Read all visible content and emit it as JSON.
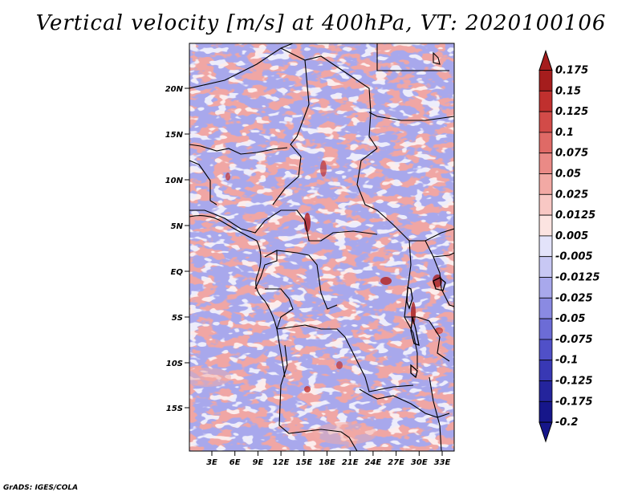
{
  "title": "Vertical velocity [m/s] at 400hPa, VT: 2020100106",
  "credit": "GrADS: IGES/COLA",
  "map": {
    "lat_ticks": [
      "20N",
      "15N",
      "10N",
      "5N",
      "EQ",
      "5S",
      "10S",
      "15S"
    ],
    "lon_ticks": [
      "3E",
      "6E",
      "9E",
      "12E",
      "15E",
      "18E",
      "21E",
      "24E",
      "27E",
      "30E",
      "33E"
    ]
  },
  "colorbar": {
    "labels": [
      "0.175",
      "0.15",
      "0.125",
      "0.1",
      "0.075",
      "0.05",
      "0.025",
      "0.0125",
      "0.005",
      "-0.005",
      "-0.0125",
      "-0.025",
      "-0.05",
      "-0.075",
      "-0.1",
      "-0.125",
      "-0.175",
      "-0.2"
    ],
    "colors": [
      "#a51d1d",
      "#c0302e",
      "#d24b48",
      "#df6a66",
      "#ea8a86",
      "#f2a9a4",
      "#f8c8c4",
      "#fce4e1",
      "#ffffff",
      "#e3e3fa",
      "#c8c8f4",
      "#a8a8ec",
      "#8a8ae2",
      "#6c6cd6",
      "#5050c8",
      "#3838b4",
      "#24249c",
      "#16168a"
    ]
  }
}
